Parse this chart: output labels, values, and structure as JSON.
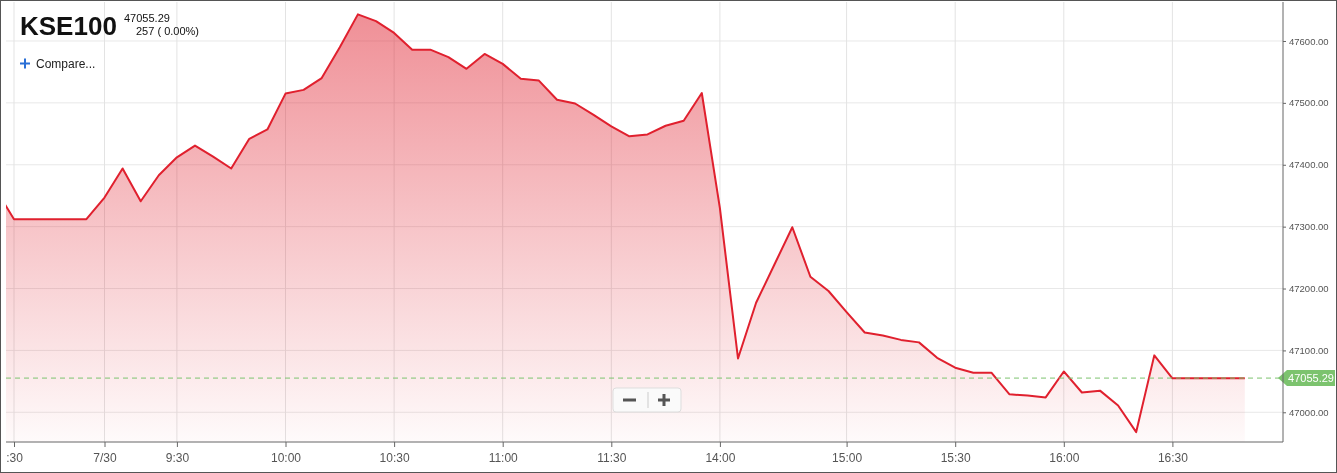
{
  "chart_data": {
    "type": "area",
    "title": "KSE100",
    "annotations": [
      "47055.29",
      "257 ( 0.00%)",
      "Compare..."
    ],
    "categories": [
      null,
      ":30",
      null,
      null,
      null,
      null,
      "7/30",
      null,
      null,
      null,
      "9:30",
      null,
      null,
      null,
      null,
      null,
      "10:00",
      null,
      null,
      null,
      null,
      null,
      "10:30",
      null,
      null,
      null,
      null,
      null,
      "11:00",
      null,
      null,
      null,
      null,
      null,
      "11:30",
      null,
      null,
      null,
      null,
      null,
      "14:00",
      null,
      null,
      null,
      null,
      null,
      null,
      "15:00",
      null,
      null,
      null,
      null,
      null,
      "15:30",
      null,
      null,
      null,
      null,
      null,
      "16:00",
      null,
      null,
      null,
      null,
      null,
      "16:30",
      null,
      null,
      null,
      null
    ],
    "series": [
      {
        "color": "#e0202e",
        "values": [
          47360,
          47312,
          47312,
          47312,
          47312,
          47312,
          47347,
          47394,
          47341,
          47383,
          47412,
          47431,
          47413,
          47394,
          47442,
          47457,
          47515,
          47521,
          47540,
          47590,
          47643,
          47632,
          47613,
          47586,
          47586,
          47574,
          47555,
          47579,
          47563,
          47539,
          47536,
          47505,
          47499,
          47481,
          47462,
          47446,
          47449,
          47463,
          47471,
          47516,
          47330,
          47087,
          47177,
          47238,
          47299,
          47219,
          47196,
          47162,
          47129,
          47124,
          47117,
          47113,
          47088,
          47072,
          47064,
          47064,
          47029,
          47027,
          47024,
          47066,
          47032,
          47035,
          47011,
          46968,
          47092,
          47055,
          47055,
          47055,
          47055,
          47055
        ]
      }
    ],
    "ylim": [
      46952,
      47663
    ],
    "yticks": [
      {
        "value": 47000,
        "label": "47000.00"
      },
      {
        "value": 47100,
        "label": "47100.00"
      },
      {
        "value": 47200,
        "label": "47200.00"
      },
      {
        "value": 47300,
        "label": "47300.00"
      },
      {
        "value": 47400,
        "label": "47400.00"
      },
      {
        "value": 47500,
        "label": "47500.00"
      },
      {
        "value": 47600,
        "label": "47600.00"
      }
    ],
    "grid": true,
    "ref_lines": [
      {
        "axis": "y",
        "value": 47055.29,
        "label": "47055.29",
        "color": "#7cc36e",
        "line_style": "dashed"
      }
    ]
  }
}
